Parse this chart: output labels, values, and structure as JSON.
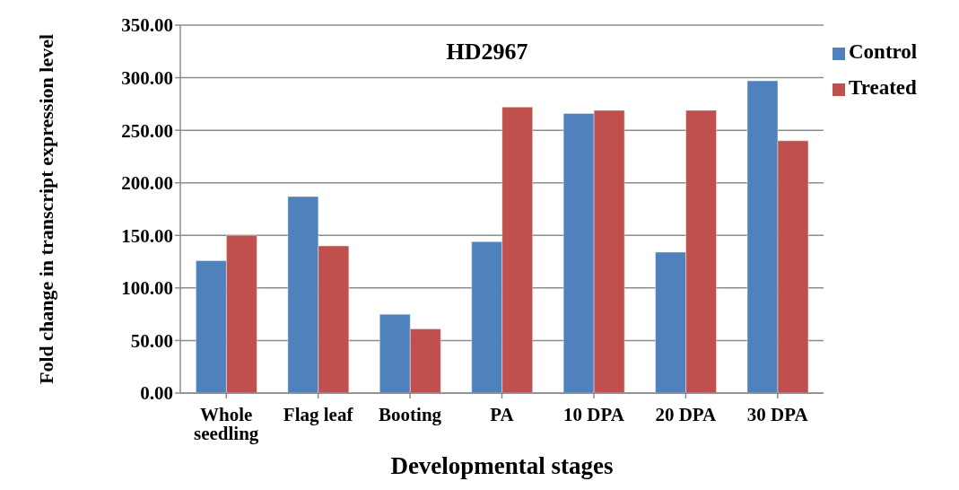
{
  "chart_data": {
    "type": "bar",
    "title": "HD2967",
    "xlabel": "Developmental stages",
    "ylabel": "Fold change in transcript expression level",
    "categories": [
      "Whole seedling",
      "Flag leaf",
      "Booting",
      "PA",
      "10 DPA",
      "20 DPA",
      "30 DPA"
    ],
    "series": [
      {
        "name": "Control",
        "color": "#4f81bd",
        "values": [
          126,
          187,
          75,
          144,
          266,
          134,
          297
        ]
      },
      {
        "name": "Treated",
        "color": "#c0504d",
        "values": [
          150,
          140,
          61,
          272,
          269,
          269,
          240
        ]
      }
    ],
    "ylim": [
      0,
      350
    ],
    "yticks": [
      {
        "value": 0,
        "label": "0.00"
      },
      {
        "value": 50,
        "label": "50.00"
      },
      {
        "value": 100,
        "label": "100.00"
      },
      {
        "value": 150,
        "label": "150.00"
      },
      {
        "value": 200,
        "label": "200.00"
      },
      {
        "value": 250,
        "label": "250.00"
      },
      {
        "value": 300,
        "label": "300.00"
      },
      {
        "value": 350,
        "label": "350.00"
      }
    ],
    "grid": "y",
    "legend": "top right"
  }
}
